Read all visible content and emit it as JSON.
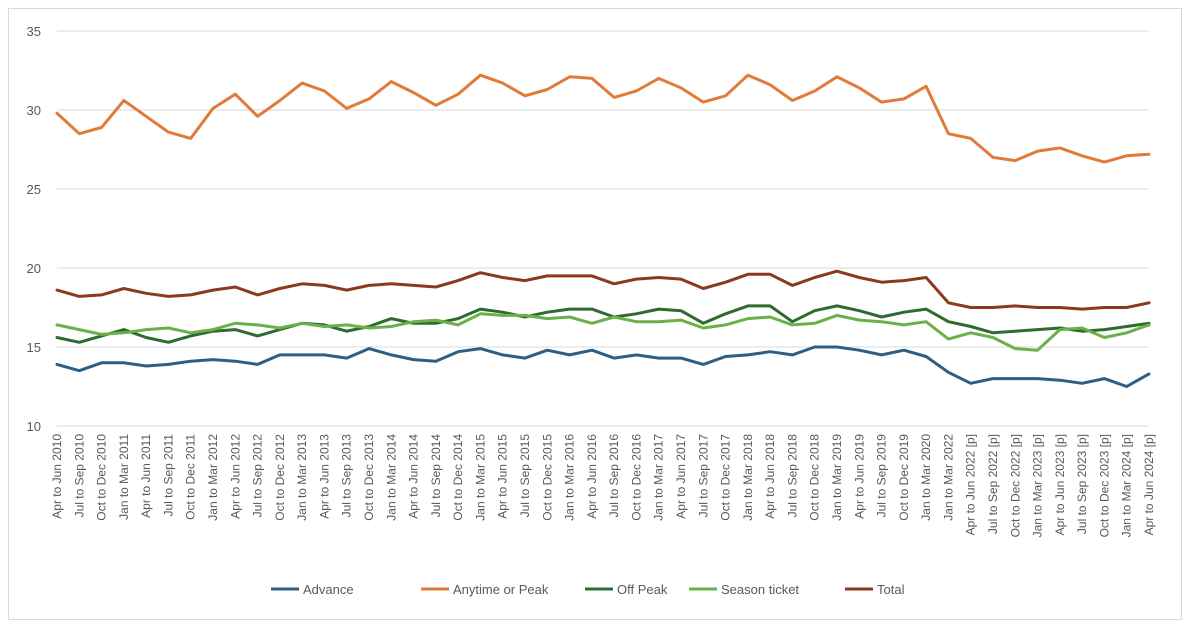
{
  "chart_data": {
    "type": "line",
    "title": "",
    "xlabel": "",
    "ylabel": "",
    "ylim": [
      10,
      35
    ],
    "yticks": [
      10,
      15,
      20,
      25,
      30,
      35
    ],
    "grid": true,
    "legend_position": "bottom",
    "categories": [
      "Apr to Jun 2010",
      "Jul to Sep 2010",
      "Oct to Dec 2010",
      "Jan to Mar 2011",
      "Apr to Jun 2011",
      "Jul to Sep 2011",
      "Oct to Dec 2011",
      "Jan to Mar 2012",
      "Apr to Jun 2012",
      "Jul to Sep 2012",
      "Oct to Dec 2012",
      "Jan to Mar 2013",
      "Apr to Jun 2013",
      "Jul to Sep 2013",
      "Oct to Dec 2013",
      "Jan to Mar 2014",
      "Apr to Jun 2014",
      "Jul to Sep 2014",
      "Oct to Dec 2014",
      "Jan to Mar 2015",
      "Apr to Jun 2015",
      "Jul to Sep 2015",
      "Oct to Dec 2015",
      "Jan to Mar 2016",
      "Apr to Jun 2016",
      "Jul to Sep 2016",
      "Oct to Dec 2016",
      "Jan to Mar 2017",
      "Apr to Jun 2017",
      "Jul to Sep 2017",
      "Oct to Dec 2017",
      "Jan to Mar 2018",
      "Apr to Jun 2018",
      "Jul to Sep 2018",
      "Oct to Dec 2018",
      "Jan to Mar 2019",
      "Apr to Jun 2019",
      "Jul to Sep 2019",
      "Oct to Dec 2019",
      "Jan to Mar 2020",
      "Jan to Mar 2022",
      "Apr to Jun 2022 [p]",
      "Jul to Sep 2022 [p]",
      "Oct to Dec 2022 [p]",
      "Jan to Mar 2023 [p]",
      "Apr to Jun 2023 [p]",
      "Jul to Sep 2023 [p]",
      "Oct to Dec 2023 [p]",
      "Jan to Mar 2024 [p]",
      "Apr to Jun 2024 [p]"
    ],
    "series": [
      {
        "name": "Advance",
        "color": "#2e5f82",
        "values": [
          13.9,
          13.5,
          14.0,
          14.0,
          13.8,
          13.9,
          14.1,
          14.2,
          14.1,
          13.9,
          14.5,
          14.5,
          14.5,
          14.3,
          14.9,
          14.5,
          14.2,
          14.1,
          14.7,
          14.9,
          14.5,
          14.3,
          14.8,
          14.5,
          14.8,
          14.3,
          14.5,
          14.3,
          14.3,
          13.9,
          14.4,
          14.5,
          14.7,
          14.5,
          15.0,
          15.0,
          14.8,
          14.5,
          14.8,
          14.4,
          13.4,
          12.7,
          13.0,
          13.0,
          13.0,
          12.9,
          12.7,
          13.0,
          12.5,
          13.3
        ]
      },
      {
        "name": "Anytime or Peak",
        "color": "#e07b39",
        "values": [
          29.8,
          28.5,
          28.9,
          30.6,
          29.6,
          28.6,
          28.2,
          30.1,
          31.0,
          29.6,
          30.6,
          31.7,
          31.2,
          30.1,
          30.7,
          31.8,
          31.1,
          30.3,
          31.0,
          32.2,
          31.7,
          30.9,
          31.3,
          32.1,
          32.0,
          30.8,
          31.2,
          32.0,
          31.4,
          30.5,
          30.9,
          32.2,
          31.6,
          30.6,
          31.2,
          32.1,
          31.4,
          30.5,
          30.7,
          31.5,
          28.5,
          28.2,
          27.0,
          26.8,
          27.4,
          27.6,
          27.1,
          26.7,
          27.1,
          27.2
        ]
      },
      {
        "name": "Off Peak",
        "color": "#2f6b2f",
        "values": [
          15.6,
          15.3,
          15.7,
          16.1,
          15.6,
          15.3,
          15.7,
          16.0,
          16.1,
          15.7,
          16.1,
          16.5,
          16.4,
          16.0,
          16.3,
          16.8,
          16.5,
          16.5,
          16.8,
          17.4,
          17.2,
          16.9,
          17.2,
          17.4,
          17.4,
          16.9,
          17.1,
          17.4,
          17.3,
          16.5,
          17.1,
          17.6,
          17.6,
          16.6,
          17.3,
          17.6,
          17.3,
          16.9,
          17.2,
          17.4,
          16.6,
          16.3,
          15.9,
          16.0,
          16.1,
          16.2,
          16.0,
          16.1,
          16.3,
          16.5
        ]
      },
      {
        "name": "Season ticket",
        "color": "#6bb04a",
        "values": [
          16.4,
          16.1,
          15.8,
          15.9,
          16.1,
          16.2,
          15.9,
          16.1,
          16.5,
          16.4,
          16.2,
          16.5,
          16.3,
          16.4,
          16.2,
          16.3,
          16.6,
          16.7,
          16.4,
          17.1,
          17.0,
          17.0,
          16.8,
          16.9,
          16.5,
          16.9,
          16.6,
          16.6,
          16.7,
          16.2,
          16.4,
          16.8,
          16.9,
          16.4,
          16.5,
          17.0,
          16.7,
          16.6,
          16.4,
          16.6,
          15.5,
          15.9,
          15.6,
          14.9,
          14.8,
          16.1,
          16.2,
          15.6,
          15.9,
          16.4
        ]
      },
      {
        "name": "Total",
        "color": "#8b3a1e",
        "values": [
          18.6,
          18.2,
          18.3,
          18.7,
          18.4,
          18.2,
          18.3,
          18.6,
          18.8,
          18.3,
          18.7,
          19.0,
          18.9,
          18.6,
          18.9,
          19.0,
          18.9,
          18.8,
          19.2,
          19.7,
          19.4,
          19.2,
          19.5,
          19.5,
          19.5,
          19.0,
          19.3,
          19.4,
          19.3,
          18.7,
          19.1,
          19.6,
          19.6,
          18.9,
          19.4,
          19.8,
          19.4,
          19.1,
          19.2,
          19.4,
          17.8,
          17.5,
          17.5,
          17.6,
          17.5,
          17.5,
          17.4,
          17.5,
          17.5,
          17.8
        ]
      }
    ]
  }
}
